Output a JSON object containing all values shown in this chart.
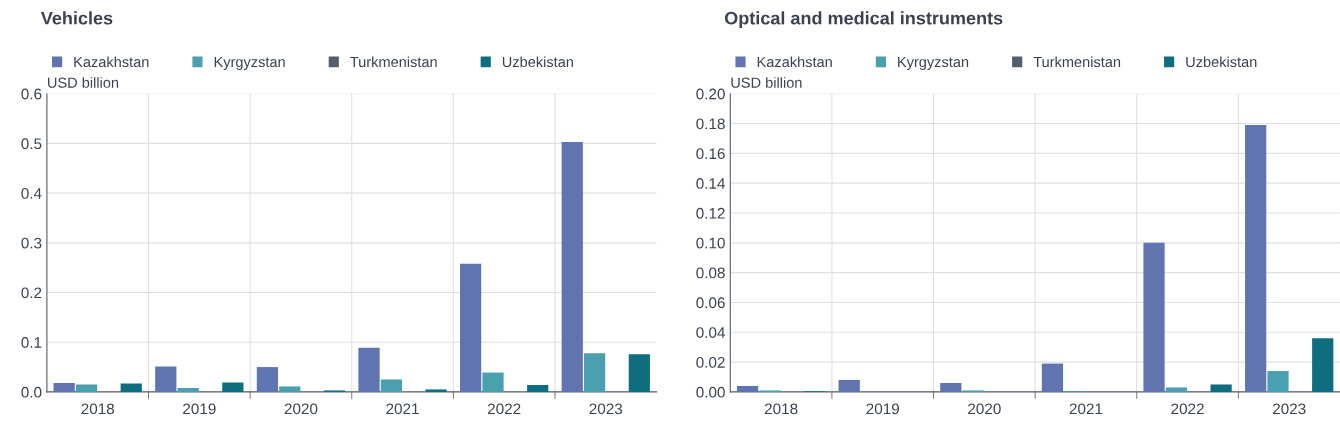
{
  "chart_data": [
    {
      "type": "bar",
      "title": "Vehicles",
      "ylabel": "USD billion",
      "categories": [
        "2018",
        "2019",
        "2020",
        "2021",
        "2022",
        "2023"
      ],
      "series": [
        {
          "name": "Kazakhstan",
          "color": "#6074b0",
          "values": [
            0.018,
            0.051,
            0.05,
            0.089,
            0.258,
            0.503
          ]
        },
        {
          "name": "Kyrgyzstan",
          "color": "#4aa0ae",
          "values": [
            0.015,
            0.008,
            0.011,
            0.025,
            0.039,
            0.078
          ]
        },
        {
          "name": "Turkmenistan",
          "color": "#555e6b",
          "values": [
            0,
            0,
            0,
            0,
            0,
            0
          ]
        },
        {
          "name": "Uzbekistan",
          "color": "#0e6e80",
          "values": [
            0.017,
            0.019,
            0.003,
            0.005,
            0.014,
            0.076
          ]
        }
      ],
      "ylim": [
        0,
        0.6
      ],
      "yticks": [
        {
          "value": 0,
          "label": "0.0"
        },
        0.1,
        0.2,
        0.3,
        0.4,
        0.5,
        0.6
      ],
      "grid": true,
      "legend": "top left"
    },
    {
      "type": "bar",
      "title": "Optical and medical instruments",
      "ylabel": "USD billion",
      "categories": [
        "2018",
        "2019",
        "2020",
        "2021",
        "2022",
        "2023"
      ],
      "series": [
        {
          "name": "Kazakhstan",
          "color": "#6074b0",
          "values": [
            0.004,
            0.008,
            0.006,
            0.019,
            0.1,
            0.179
          ]
        },
        {
          "name": "Kyrgyzstan",
          "color": "#4aa0ae",
          "values": [
            0.001,
            0,
            0.001,
            0.0005,
            0.003,
            0.014
          ]
        },
        {
          "name": "Turkmenistan",
          "color": "#555e6b",
          "values": [
            0,
            0,
            0,
            0,
            0,
            0
          ]
        },
        {
          "name": "Uzbekistan",
          "color": "#0e6e80",
          "values": [
            0.0005,
            0,
            0,
            0,
            0.005,
            0.036
          ]
        }
      ],
      "ylim": [
        0,
        0.2
      ],
      "yticks": [
        {
          "value": 0,
          "label": "0.00"
        },
        {
          "value": 0.02,
          "label": "0.02"
        },
        {
          "value": 0.04,
          "label": "0.04"
        },
        {
          "value": 0.06,
          "label": "0.06"
        },
        {
          "value": 0.08,
          "label": "0.08"
        },
        {
          "value": 0.1,
          "label": "0.10"
        },
        {
          "value": 0.12,
          "label": "0.12"
        },
        {
          "value": 0.14,
          "label": "0.14"
        },
        {
          "value": 0.16,
          "label": "0.16"
        },
        {
          "value": 0.18,
          "label": "0.18"
        },
        {
          "value": 0.2,
          "label": "0.20"
        }
      ],
      "grid": true,
      "legend": "top left"
    }
  ]
}
